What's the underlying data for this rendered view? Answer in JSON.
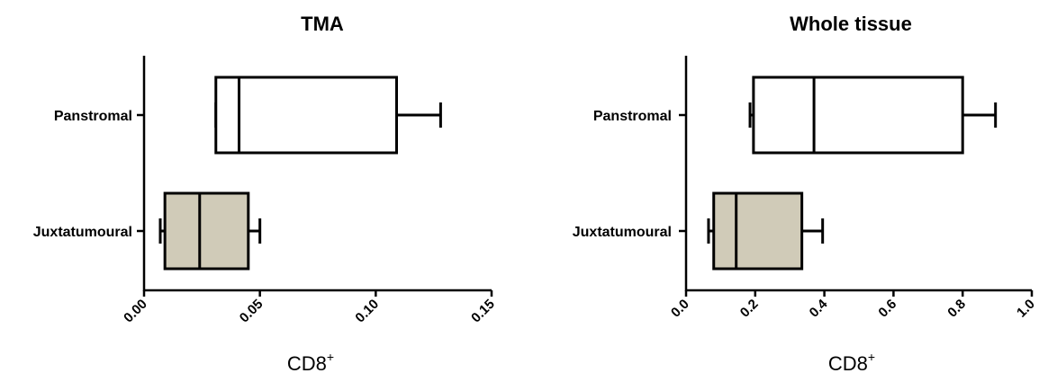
{
  "chart_data": [
    {
      "type": "boxplot",
      "title": "TMA",
      "xlabel": "CD8",
      "xlabel_sup": "+",
      "xlim": [
        0,
        0.15
      ],
      "xticks": [
        "0.00",
        "0.05",
        "0.10",
        "0.15"
      ],
      "categories": [
        "Panstromal",
        "Juxtatumoural"
      ],
      "boxes": [
        {
          "category": "Panstromal",
          "min": 0.031,
          "q1": 0.031,
          "median": 0.041,
          "q3": 0.109,
          "max": 0.128,
          "fill": "#ffffff"
        },
        {
          "category": "Juxtatumoural",
          "min": 0.007,
          "q1": 0.009,
          "median": 0.024,
          "q3": 0.045,
          "max": 0.05,
          "fill": "#d0cbb8"
        }
      ]
    },
    {
      "type": "boxplot",
      "title": "Whole tissue",
      "xlabel": "CD8",
      "xlabel_sup": "+",
      "xlim": [
        0,
        1.0
      ],
      "xticks": [
        "0.0",
        "0.2",
        "0.4",
        "0.6",
        "0.8",
        "1.0"
      ],
      "categories": [
        "Panstromal",
        "Juxtatumoural"
      ],
      "boxes": [
        {
          "category": "Panstromal",
          "min": 0.185,
          "q1": 0.195,
          "median": 0.37,
          "q3": 0.8,
          "max": 0.895,
          "fill": "#ffffff"
        },
        {
          "category": "Juxtatumoural",
          "min": 0.065,
          "q1": 0.08,
          "median": 0.145,
          "q3": 0.335,
          "max": 0.395,
          "fill": "#d0cbb8"
        }
      ]
    }
  ]
}
